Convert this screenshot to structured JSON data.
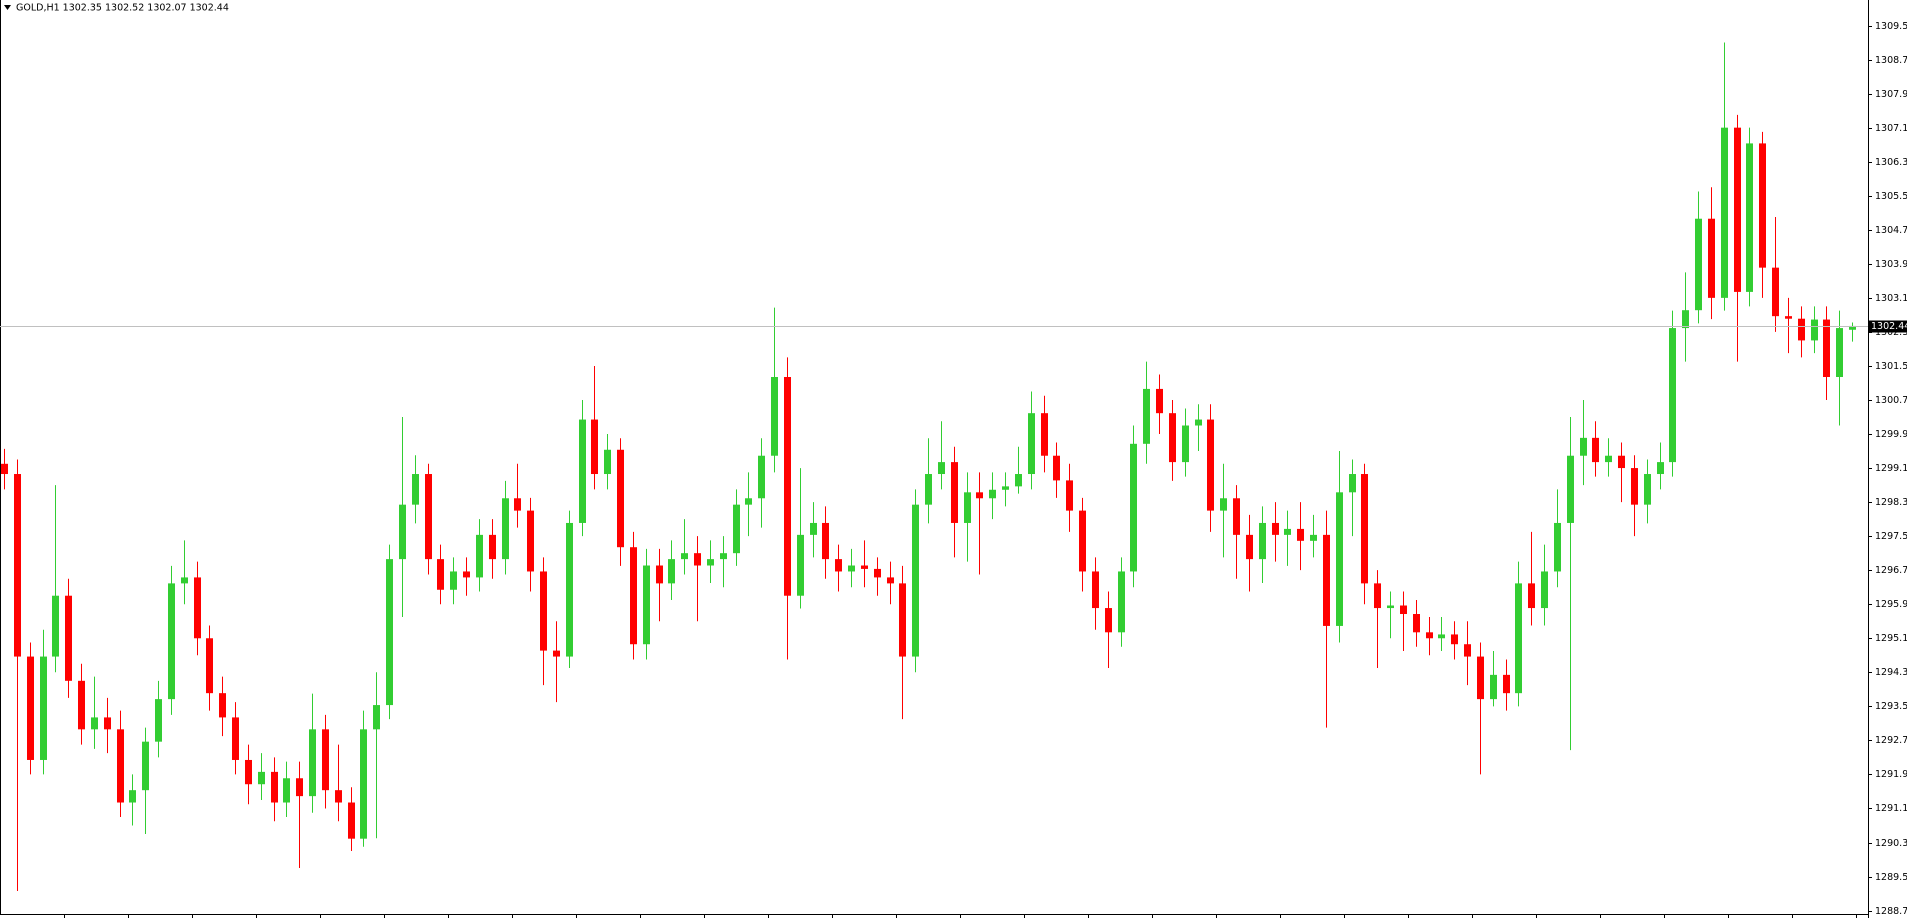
{
  "chart_data": {
    "type": "candlestick",
    "title": "GOLD,H1  1302.35 1302.52 1302.07 1302.44",
    "up_color": "#32cd32",
    "down_color": "#ff0000",
    "bid": 1302.44,
    "ylim": [
      1288.62,
      1310.1
    ],
    "yticks": [
      1309.5,
      1308.7,
      1307.9,
      1307.1,
      1306.3,
      1305.5,
      1304.7,
      1303.9,
      1303.1,
      1302.3,
      1301.5,
      1300.7,
      1299.9,
      1299.1,
      1298.3,
      1297.5,
      1296.7,
      1295.9,
      1295.1,
      1294.3,
      1293.5,
      1292.7,
      1291.9,
      1291.1,
      1290.3,
      1289.5,
      1288.7
    ],
    "open": [
      1299.2,
      1298.96,
      1294.67,
      1292.24,
      1294.67,
      1296.1,
      1294.1,
      1292.96,
      1293.24,
      1292.96,
      1291.24,
      1291.53,
      1292.67,
      1293.67,
      1296.39,
      1296.53,
      1295.1,
      1293.81,
      1293.24,
      1292.24,
      1291.67,
      1291.96,
      1291.24,
      1291.81,
      1291.39,
      1292.96,
      1291.53,
      1291.24,
      1290.39,
      1292.96,
      1293.53,
      1296.96,
      1298.24,
      1298.96,
      1296.96,
      1296.24,
      1296.67,
      1296.53,
      1297.53,
      1296.96,
      1298.39,
      1298.1,
      1296.67,
      1294.81,
      1294.67,
      1297.81,
      1300.24,
      1298.96,
      1299.53,
      1297.24,
      1294.96,
      1296.81,
      1296.39,
      1296.96,
      1297.1,
      1296.81,
      1296.96,
      1297.1,
      1298.24,
      1298.39,
      1299.39,
      1301.24,
      1296.1,
      1297.53,
      1297.81,
      1296.96,
      1296.67,
      1296.81,
      1296.73,
      1296.53,
      1296.39,
      1294.67,
      1298.24,
      1298.96,
      1299.24,
      1297.81,
      1298.53,
      1298.39,
      1298.59,
      1298.67,
      1298.96,
      1300.39,
      1299.39,
      1298.81,
      1298.1,
      1296.67,
      1295.81,
      1295.24,
      1296.67,
      1299.67,
      1300.96,
      1300.39,
      1299.24,
      1300.1,
      1300.24,
      1298.1,
      1298.39,
      1297.53,
      1296.96,
      1297.81,
      1297.53,
      1297.67,
      1297.39,
      1297.53,
      1295.39,
      1298.53,
      1298.96,
      1296.39,
      1295.81,
      1295.87,
      1295.67,
      1295.24,
      1295.1,
      1295.19,
      1294.96,
      1294.67,
      1293.67,
      1294.24,
      1293.81,
      1296.39,
      1295.81,
      1296.67,
      1297.81,
      1299.39,
      1299.81,
      1299.24,
      1299.39,
      1299.1,
      1298.24,
      1298.96,
      1299.24,
      1302.39,
      1302.81,
      1304.96,
      1303.1,
      1307.1,
      1303.24,
      1306.73,
      1303.81,
      1302.67,
      1302.61,
      1302.1,
      1302.59,
      1301.24,
      1302.35
    ],
    "high": [
      1299.55,
      1299.3,
      1295.0,
      1295.3,
      1298.7,
      1296.5,
      1294.5,
      1294.2,
      1293.7,
      1293.4,
      1291.9,
      1293.0,
      1294.1,
      1296.8,
      1297.4,
      1296.9,
      1295.4,
      1294.2,
      1293.6,
      1292.6,
      1292.4,
      1292.3,
      1292.2,
      1292.2,
      1293.8,
      1293.3,
      1292.6,
      1291.6,
      1293.4,
      1294.3,
      1297.3,
      1300.3,
      1299.4,
      1299.2,
      1297.3,
      1297.0,
      1297.0,
      1297.9,
      1297.9,
      1298.8,
      1299.2,
      1298.4,
      1297.0,
      1295.5,
      1298.1,
      1300.7,
      1301.5,
      1299.9,
      1299.8,
      1297.6,
      1297.2,
      1297.2,
      1297.4,
      1297.9,
      1297.5,
      1297.4,
      1297.5,
      1298.6,
      1299.0,
      1299.8,
      1302.87,
      1301.7,
      1299.1,
      1298.3,
      1298.2,
      1297.3,
      1297.2,
      1297.4,
      1297.0,
      1296.9,
      1296.8,
      1298.6,
      1299.8,
      1300.2,
      1299.6,
      1299.0,
      1299.0,
      1299.0,
      1299.0,
      1299.6,
      1300.9,
      1300.8,
      1299.7,
      1299.2,
      1298.4,
      1297.0,
      1296.2,
      1297.0,
      1300.1,
      1301.6,
      1301.3,
      1300.7,
      1300.5,
      1300.6,
      1300.6,
      1299.2,
      1298.7,
      1298.0,
      1298.2,
      1298.3,
      1298.1,
      1298.3,
      1298.0,
      1298.1,
      1299.5,
      1299.3,
      1299.2,
      1296.7,
      1296.2,
      1296.2,
      1296.0,
      1295.6,
      1295.6,
      1295.5,
      1295.5,
      1295.0,
      1294.8,
      1294.6,
      1296.9,
      1297.6,
      1297.3,
      1298.6,
      1300.3,
      1300.7,
      1300.2,
      1299.8,
      1299.7,
      1299.4,
      1299.3,
      1299.7,
      1302.8,
      1303.7,
      1305.6,
      1305.7,
      1309.1,
      1307.4,
      1307.1,
      1307.0,
      1305.0,
      1303.1,
      1302.9,
      1302.9,
      1302.9,
      1302.8,
      1302.52
    ],
    "low": [
      1298.6,
      1289.16,
      1291.9,
      1291.9,
      1294.3,
      1293.7,
      1292.6,
      1292.5,
      1292.4,
      1290.9,
      1290.7,
      1290.5,
      1292.3,
      1293.3,
      1295.9,
      1294.7,
      1293.4,
      1292.8,
      1291.9,
      1291.2,
      1291.3,
      1290.8,
      1290.9,
      1289.7,
      1291.0,
      1291.1,
      1290.8,
      1290.1,
      1290.2,
      1290.4,
      1293.2,
      1295.6,
      1297.8,
      1296.6,
      1295.9,
      1295.9,
      1296.1,
      1296.2,
      1296.5,
      1296.6,
      1297.7,
      1296.2,
      1294.0,
      1293.6,
      1294.4,
      1297.5,
      1298.6,
      1298.6,
      1296.8,
      1294.6,
      1294.6,
      1295.5,
      1296.0,
      1296.6,
      1295.5,
      1296.4,
      1296.3,
      1296.8,
      1297.5,
      1297.7,
      1299.0,
      1294.6,
      1295.8,
      1297.0,
      1296.5,
      1296.2,
      1296.3,
      1296.3,
      1296.1,
      1295.9,
      1293.2,
      1294.3,
      1297.8,
      1298.6,
      1297.0,
      1296.9,
      1296.6,
      1297.9,
      1298.2,
      1298.5,
      1298.6,
      1299.0,
      1298.4,
      1297.6,
      1296.2,
      1295.3,
      1294.4,
      1294.9,
      1296.3,
      1299.2,
      1299.9,
      1298.8,
      1298.9,
      1299.5,
      1297.6,
      1297.0,
      1296.5,
      1296.2,
      1296.4,
      1296.9,
      1296.8,
      1296.7,
      1297.0,
      1293.0,
      1295.0,
      1297.5,
      1295.9,
      1294.4,
      1295.1,
      1294.8,
      1294.9,
      1294.7,
      1294.8,
      1294.6,
      1294.0,
      1291.9,
      1293.5,
      1293.4,
      1293.5,
      1295.4,
      1295.4,
      1296.3,
      1292.47,
      1298.7,
      1298.9,
      1298.9,
      1298.3,
      1297.5,
      1297.8,
      1298.6,
      1298.9,
      1301.6,
      1302.5,
      1302.6,
      1302.8,
      1301.6,
      1302.9,
      1303.1,
      1302.3,
      1301.8,
      1301.7,
      1301.8,
      1300.7,
      1300.1,
      1302.07
    ],
    "close": [
      1298.96,
      1294.67,
      1292.24,
      1294.67,
      1296.1,
      1294.1,
      1292.96,
      1293.24,
      1292.96,
      1291.24,
      1291.53,
      1292.67,
      1293.67,
      1296.39,
      1296.53,
      1295.1,
      1293.81,
      1293.24,
      1292.24,
      1291.67,
      1291.96,
      1291.24,
      1291.81,
      1291.39,
      1292.96,
      1291.53,
      1291.24,
      1290.39,
      1292.96,
      1293.53,
      1296.96,
      1298.24,
      1298.96,
      1296.96,
      1296.24,
      1296.67,
      1296.53,
      1297.53,
      1296.96,
      1298.39,
      1298.1,
      1296.67,
      1294.81,
      1294.67,
      1297.81,
      1300.24,
      1298.96,
      1299.53,
      1297.24,
      1294.96,
      1296.81,
      1296.39,
      1296.96,
      1297.1,
      1296.81,
      1296.96,
      1297.1,
      1298.24,
      1298.39,
      1299.39,
      1301.24,
      1296.1,
      1297.53,
      1297.81,
      1296.96,
      1296.67,
      1296.81,
      1296.73,
      1296.53,
      1296.39,
      1294.67,
      1298.24,
      1298.96,
      1299.24,
      1297.81,
      1298.53,
      1298.39,
      1298.59,
      1298.67,
      1298.96,
      1300.39,
      1299.39,
      1298.81,
      1298.1,
      1296.67,
      1295.81,
      1295.24,
      1296.67,
      1299.67,
      1300.96,
      1300.39,
      1299.24,
      1300.1,
      1300.24,
      1298.1,
      1298.39,
      1297.53,
      1296.96,
      1297.81,
      1297.53,
      1297.67,
      1297.39,
      1297.53,
      1295.39,
      1298.53,
      1298.96,
      1296.39,
      1295.81,
      1295.87,
      1295.67,
      1295.24,
      1295.1,
      1295.19,
      1294.96,
      1294.67,
      1293.67,
      1294.24,
      1293.81,
      1296.39,
      1295.81,
      1296.67,
      1297.81,
      1299.39,
      1299.81,
      1299.24,
      1299.39,
      1299.1,
      1298.24,
      1298.96,
      1299.24,
      1302.39,
      1302.81,
      1304.96,
      1303.1,
      1307.1,
      1303.24,
      1306.73,
      1303.81,
      1302.67,
      1302.61,
      1302.1,
      1302.59,
      1301.24,
      1302.39,
      1302.44
    ]
  }
}
